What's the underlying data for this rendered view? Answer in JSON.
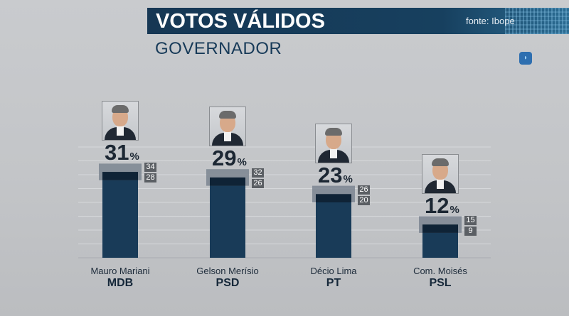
{
  "header": {
    "title": "VOTOS VÁLIDOS",
    "source": "fonte: Ibope",
    "subtitle": "GOVERNADOR"
  },
  "colors": {
    "bar": "#193b58",
    "bar_top": "#0f2336",
    "margin_band": "#7b8591",
    "header": "#163754"
  },
  "chart_data": {
    "type": "bar",
    "categories": [
      "Mauro Mariani",
      "Gelson Merísio",
      "Décio Lima",
      "Com. Moisés"
    ],
    "parties": [
      "MDB",
      "PSD",
      "PT",
      "PSL"
    ],
    "values": [
      31,
      29,
      23,
      12
    ],
    "value_labels": [
      "31",
      "29",
      "23",
      "12"
    ],
    "percent_sign": "%",
    "upper": [
      34,
      32,
      26,
      15
    ],
    "lower": [
      28,
      26,
      20,
      9
    ],
    "ylim": [
      0,
      40
    ],
    "grid": true,
    "legend": "none"
  }
}
